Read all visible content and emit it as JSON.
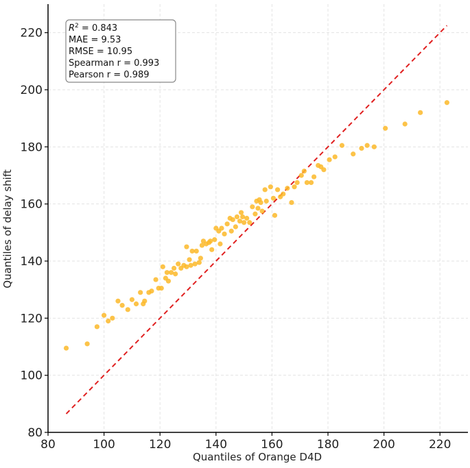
{
  "chart_data": {
    "type": "scatter",
    "xlabel": "Quantiles of Orange D4D",
    "ylabel": "Quantiles of delay shift",
    "xlim": [
      80,
      230
    ],
    "ylim": [
      80,
      230
    ],
    "xticks": [
      80,
      100,
      120,
      140,
      160,
      180,
      200,
      220
    ],
    "yticks": [
      80,
      100,
      120,
      140,
      160,
      180,
      200,
      220
    ],
    "grid": true,
    "point_color": "#FBB829",
    "reference_line": {
      "from": [
        86.5,
        86.5
      ],
      "to": [
        222.5,
        222.5
      ],
      "color": "#E02020",
      "style": "dashed"
    },
    "stats": {
      "r2_symbol": "R",
      "r2_exponent": "2",
      "r2_value": " = 0.843",
      "mae": "MAE = 9.53",
      "rmse": "RMSE = 10.95",
      "spearman": "Spearman r = 0.993",
      "pearson": "Pearson r = 0.989"
    },
    "points": [
      [
        86.5,
        109.5
      ],
      [
        94,
        111
      ],
      [
        97.5,
        117
      ],
      [
        100,
        121
      ],
      [
        101.5,
        119
      ],
      [
        103,
        120
      ],
      [
        105,
        126
      ],
      [
        106.5,
        124.5
      ],
      [
        108.5,
        123
      ],
      [
        110,
        126.5
      ],
      [
        111.5,
        125
      ],
      [
        113,
        129
      ],
      [
        114,
        125
      ],
      [
        114.5,
        126
      ],
      [
        116,
        129
      ],
      [
        117,
        129.5
      ],
      [
        118.5,
        133.5
      ],
      [
        119.5,
        130.5
      ],
      [
        120.5,
        130.5
      ],
      [
        121,
        138
      ],
      [
        122,
        134
      ],
      [
        122.5,
        136
      ],
      [
        123,
        133
      ],
      [
        124,
        136
      ],
      [
        125,
        137.5
      ],
      [
        125.5,
        135.5
      ],
      [
        126.5,
        139
      ],
      [
        127.5,
        137.5
      ],
      [
        128.5,
        138.5
      ],
      [
        129.5,
        138
      ],
      [
        129.5,
        145
      ],
      [
        130.5,
        140.5
      ],
      [
        131,
        138.5
      ],
      [
        131.5,
        143.5
      ],
      [
        132.5,
        139
      ],
      [
        133,
        143.5
      ],
      [
        134,
        139.5
      ],
      [
        134.5,
        141
      ],
      [
        135,
        145.5
      ],
      [
        135.5,
        147
      ],
      [
        136.5,
        146
      ],
      [
        137.5,
        146.5
      ],
      [
        138,
        147
      ],
      [
        138.5,
        144
      ],
      [
        139.5,
        147.5
      ],
      [
        140,
        151.5
      ],
      [
        141,
        150.5
      ],
      [
        141.5,
        146
      ],
      [
        142,
        151.5
      ],
      [
        143,
        149.5
      ],
      [
        144,
        153
      ],
      [
        145,
        155
      ],
      [
        145.5,
        150.5
      ],
      [
        146,
        154.5
      ],
      [
        147,
        152
      ],
      [
        147.5,
        155.5
      ],
      [
        148.5,
        154
      ],
      [
        149,
        157
      ],
      [
        149.5,
        155.5
      ],
      [
        150,
        153.5
      ],
      [
        151,
        155
      ],
      [
        152,
        153.5
      ],
      [
        153,
        159
      ],
      [
        154,
        156.5
      ],
      [
        154.5,
        161
      ],
      [
        155,
        158.5
      ],
      [
        155.5,
        161.5
      ],
      [
        156,
        160.5
      ],
      [
        156.5,
        157.5
      ],
      [
        157.5,
        165
      ],
      [
        158,
        161
      ],
      [
        159.5,
        166
      ],
      [
        160.5,
        162
      ],
      [
        161,
        156
      ],
      [
        162,
        165
      ],
      [
        163,
        162.5
      ],
      [
        164,
        163.5
      ],
      [
        165.5,
        165.5
      ],
      [
        167,
        160.5
      ],
      [
        168,
        166
      ],
      [
        169,
        167.5
      ],
      [
        170.5,
        170
      ],
      [
        171.5,
        171.5
      ],
      [
        172.5,
        167.5
      ],
      [
        174,
        167.5
      ],
      [
        175,
        169.5
      ],
      [
        176.5,
        173.5
      ],
      [
        177.5,
        173
      ],
      [
        178.5,
        172
      ],
      [
        180.5,
        175.5
      ],
      [
        182.5,
        176.5
      ],
      [
        185,
        180.5
      ],
      [
        189,
        177.5
      ],
      [
        192,
        179.5
      ],
      [
        194,
        180.5
      ],
      [
        196.5,
        180
      ],
      [
        200.5,
        186.5
      ],
      [
        207.5,
        188
      ],
      [
        213,
        192
      ],
      [
        222.5,
        195.5
      ]
    ]
  }
}
